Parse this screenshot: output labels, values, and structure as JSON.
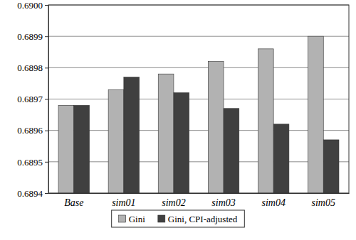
{
  "chart_data": {
    "type": "bar",
    "categories": [
      "Base",
      "sim01",
      "sim02",
      "sim03",
      "sim04",
      "sim05"
    ],
    "series": [
      {
        "name": "Gini",
        "color": "#b2b2b2",
        "values": [
          0.68968,
          0.68973,
          0.68978,
          0.68982,
          0.68986,
          0.6899
        ]
      },
      {
        "name": "Gini, CPI-adjusted",
        "color": "#404040",
        "values": [
          0.68968,
          0.68977,
          0.68972,
          0.68967,
          0.68962,
          0.68957
        ]
      }
    ],
    "ylim": [
      0.6894,
      0.69
    ],
    "yticks": [
      0.6894,
      0.6895,
      0.6896,
      0.6897,
      0.6898,
      0.6899,
      {
        "value": 0.69,
        "label": "0.6900"
      }
    ],
    "grid": true,
    "legend": "bottom"
  }
}
